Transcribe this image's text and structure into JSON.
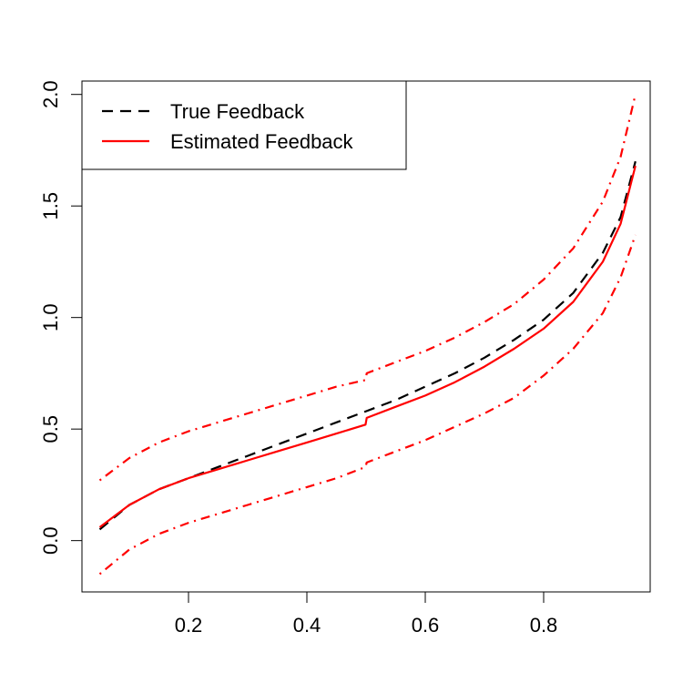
{
  "chart_data": {
    "type": "line",
    "title": "",
    "xlabel": "",
    "ylabel": "",
    "xlim": [
      0.02,
      0.98
    ],
    "ylim": [
      -0.23,
      2.06
    ],
    "xticks": [
      "0.2",
      "0.4",
      "0.6",
      "0.8"
    ],
    "yticks": [
      "0.0",
      "0.5",
      "1.0",
      "1.5",
      "2.0"
    ],
    "legend_position": "top-left",
    "legend": [
      {
        "label": "True Feedback",
        "color": "#000000",
        "style": "dashed"
      },
      {
        "label": "Estimated Feedback",
        "color": "#ff0000",
        "style": "solid"
      }
    ],
    "series": [
      {
        "name": "True Feedback",
        "color": "#000000",
        "style": "dashed",
        "points": [
          [
            0.05,
            0.05
          ],
          [
            0.1,
            0.16
          ],
          [
            0.15,
            0.23
          ],
          [
            0.2,
            0.28
          ],
          [
            0.25,
            0.33
          ],
          [
            0.3,
            0.38
          ],
          [
            0.35,
            0.43
          ],
          [
            0.4,
            0.48
          ],
          [
            0.45,
            0.53
          ],
          [
            0.5,
            0.58
          ],
          [
            0.55,
            0.63
          ],
          [
            0.6,
            0.69
          ],
          [
            0.65,
            0.75
          ],
          [
            0.7,
            0.82
          ],
          [
            0.75,
            0.9
          ],
          [
            0.8,
            0.99
          ],
          [
            0.85,
            1.11
          ],
          [
            0.9,
            1.29
          ],
          [
            0.93,
            1.45
          ],
          [
            0.955,
            1.7
          ]
        ]
      },
      {
        "name": "Estimated Feedback",
        "color": "#ff0000",
        "style": "solid",
        "points": [
          [
            0.05,
            0.06
          ],
          [
            0.1,
            0.16
          ],
          [
            0.15,
            0.23
          ],
          [
            0.2,
            0.28
          ],
          [
            0.25,
            0.32
          ],
          [
            0.3,
            0.36
          ],
          [
            0.35,
            0.4
          ],
          [
            0.4,
            0.44
          ],
          [
            0.45,
            0.48
          ],
          [
            0.499,
            0.52
          ],
          [
            0.501,
            0.55
          ],
          [
            0.55,
            0.6
          ],
          [
            0.6,
            0.65
          ],
          [
            0.65,
            0.71
          ],
          [
            0.7,
            0.78
          ],
          [
            0.75,
            0.86
          ],
          [
            0.8,
            0.95
          ],
          [
            0.85,
            1.07
          ],
          [
            0.9,
            1.25
          ],
          [
            0.93,
            1.42
          ],
          [
            0.955,
            1.68
          ]
        ]
      },
      {
        "name": "",
        "color": "#ff0000",
        "style": "dotdash",
        "points": [
          [
            0.05,
            0.27
          ],
          [
            0.1,
            0.37
          ],
          [
            0.15,
            0.44
          ],
          [
            0.2,
            0.49
          ],
          [
            0.25,
            0.53
          ],
          [
            0.3,
            0.57
          ],
          [
            0.35,
            0.61
          ],
          [
            0.4,
            0.65
          ],
          [
            0.45,
            0.69
          ],
          [
            0.499,
            0.72
          ],
          [
            0.501,
            0.75
          ],
          [
            0.55,
            0.8
          ],
          [
            0.6,
            0.85
          ],
          [
            0.65,
            0.91
          ],
          [
            0.7,
            0.98
          ],
          [
            0.75,
            1.06
          ],
          [
            0.8,
            1.17
          ],
          [
            0.85,
            1.31
          ],
          [
            0.9,
            1.52
          ],
          [
            0.93,
            1.72
          ],
          [
            0.955,
            2.0
          ]
        ]
      },
      {
        "name": "",
        "color": "#ff0000",
        "style": "dotdash",
        "points": [
          [
            0.05,
            -0.15
          ],
          [
            0.1,
            -0.04
          ],
          [
            0.15,
            0.03
          ],
          [
            0.2,
            0.08
          ],
          [
            0.25,
            0.12
          ],
          [
            0.3,
            0.16
          ],
          [
            0.35,
            0.2
          ],
          [
            0.4,
            0.24
          ],
          [
            0.45,
            0.28
          ],
          [
            0.499,
            0.33
          ],
          [
            0.501,
            0.35
          ],
          [
            0.55,
            0.4
          ],
          [
            0.6,
            0.45
          ],
          [
            0.65,
            0.51
          ],
          [
            0.7,
            0.57
          ],
          [
            0.75,
            0.64
          ],
          [
            0.8,
            0.74
          ],
          [
            0.85,
            0.86
          ],
          [
            0.9,
            1.02
          ],
          [
            0.93,
            1.18
          ],
          [
            0.955,
            1.37
          ]
        ]
      }
    ]
  }
}
